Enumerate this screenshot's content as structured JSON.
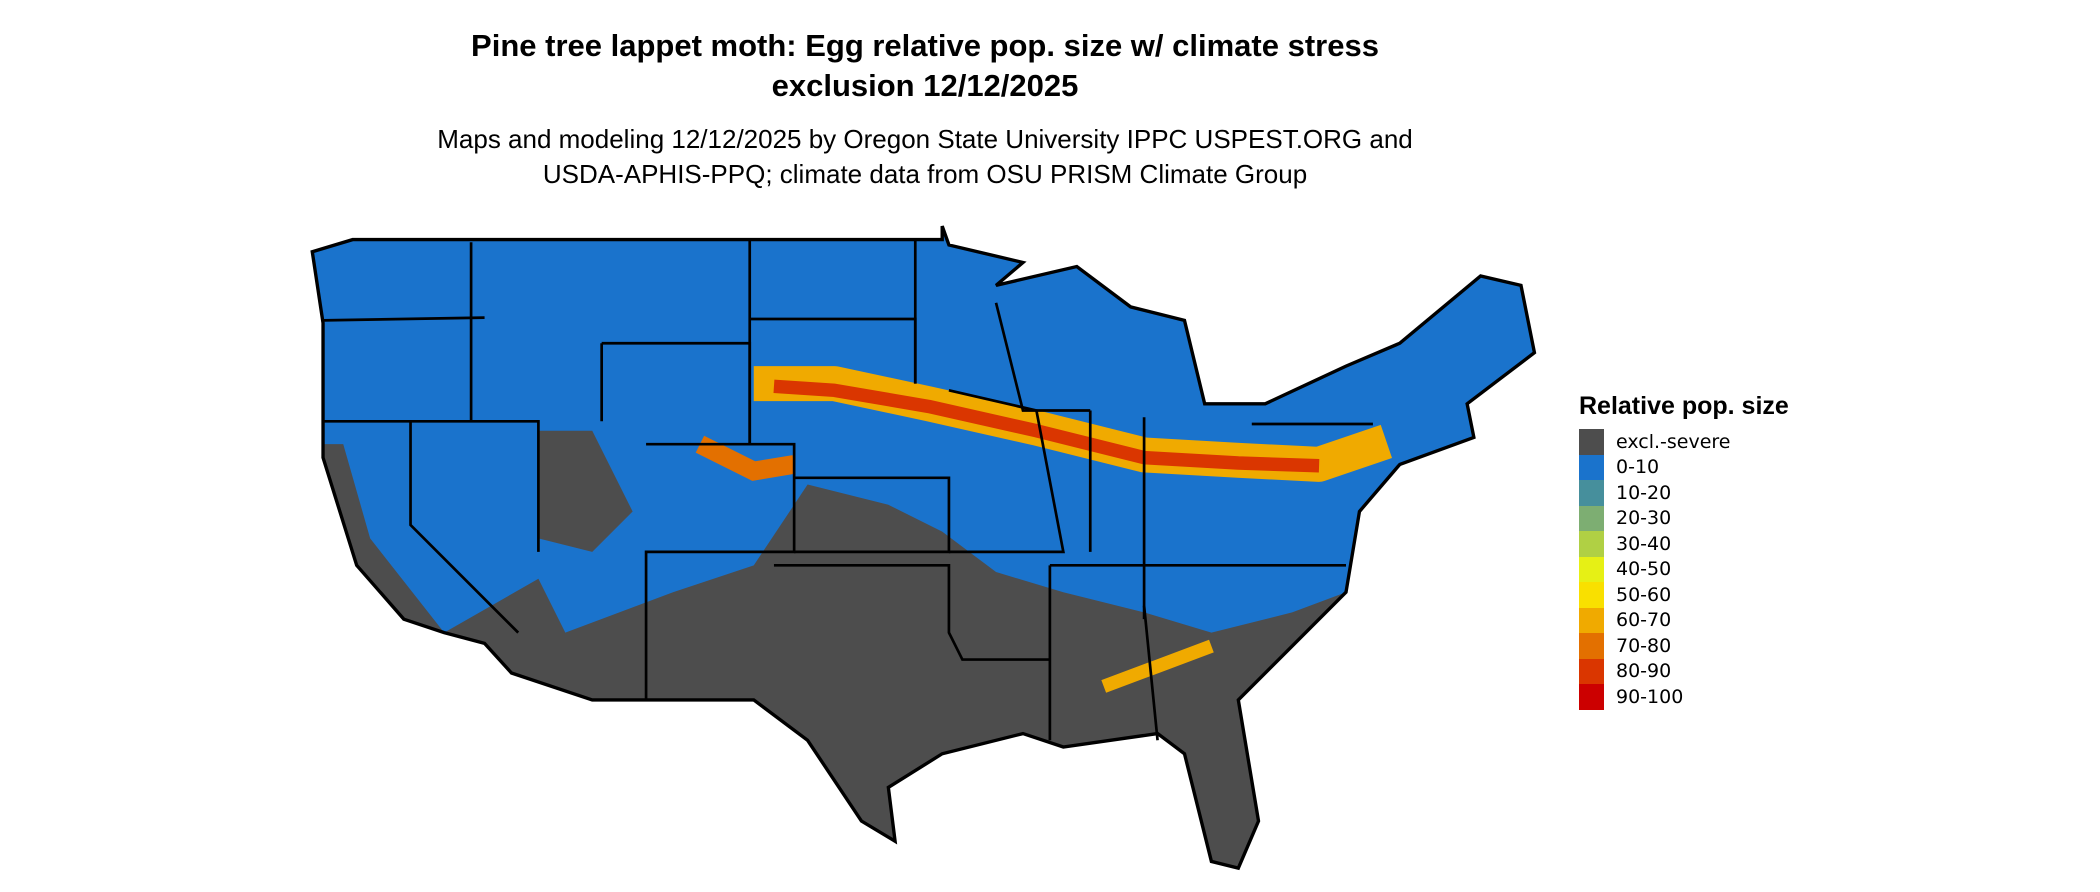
{
  "title_line1": "Pine tree lappet moth: Egg relative pop. size w/ climate stress",
  "title_line2": "exclusion 12/12/2025",
  "subtitle_line1": "Maps and modeling 12/12/2025 by Oregon State University IPPC USPEST.ORG and",
  "subtitle_line2": "USDA-APHIS-PPQ; climate data from OSU PRISM Climate Group",
  "legend": {
    "title": "Relative pop. size",
    "items": [
      {
        "label": "excl.-severe",
        "color": "#4d4d4d"
      },
      {
        "label": "0-10",
        "color": "#1a73cc"
      },
      {
        "label": "10-20",
        "color": "#468f9c"
      },
      {
        "label": "20-30",
        "color": "#7dae72"
      },
      {
        "label": "30-40",
        "color": "#b0d044"
      },
      {
        "label": "40-50",
        "color": "#e6f015"
      },
      {
        "label": "50-60",
        "color": "#f9e000"
      },
      {
        "label": "60-70",
        "color": "#f0aa00"
      },
      {
        "label": "70-80",
        "color": "#e37000"
      },
      {
        "label": "80-90",
        "color": "#da3600"
      },
      {
        "label": "90-100",
        "color": "#cc0000"
      }
    ]
  }
}
